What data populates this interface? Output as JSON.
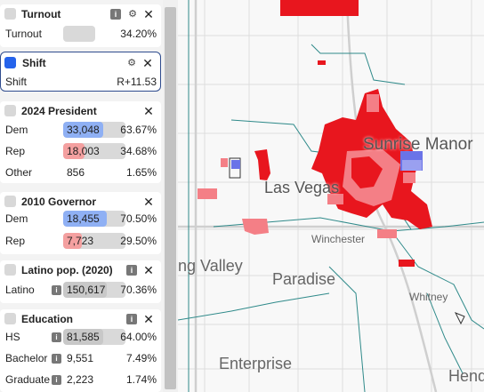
{
  "panel": {
    "turnout": {
      "title": "Turnout",
      "label": "Turnout",
      "value": "34.20%",
      "checked": false
    },
    "shift": {
      "title": "Shift",
      "label": "Shift",
      "value": "R+11.53",
      "checked": true
    },
    "president2024": {
      "title": "2024 President",
      "rows": [
        {
          "label": "Dem",
          "count": "33,048",
          "pct": "63.67%",
          "share": 63.67,
          "color": "#8fb0f4"
        },
        {
          "label": "Rep",
          "count": "18,003",
          "pct": "34.68%",
          "share": 34.68,
          "color": "#f4a0a0"
        },
        {
          "label": "Other",
          "count": "856",
          "pct": "1.65%",
          "share": 1.65,
          "color": "#d9d9d9"
        }
      ]
    },
    "governor2010": {
      "title": "2010 Governor",
      "rows": [
        {
          "label": "Dem",
          "count": "18,455",
          "pct": "70.50%",
          "share": 70.5,
          "color": "#8fb0f4"
        },
        {
          "label": "Rep",
          "count": "7,723",
          "pct": "29.50%",
          "share": 29.5,
          "color": "#f4a0a0"
        }
      ]
    },
    "latino": {
      "title": "Latino pop. (2020)",
      "rows": [
        {
          "label": "Latino",
          "count": "150,617",
          "pct": "70.36%",
          "share": 70.36,
          "color": "#c8c8c8"
        }
      ]
    },
    "education": {
      "title": "Education",
      "rows": [
        {
          "label": "HS",
          "count": "81,585",
          "pct": "64.00%",
          "share": 64.0,
          "color": "#c8c8c8"
        },
        {
          "label": "Bachelor",
          "count": "9,551",
          "pct": "7.49%",
          "share": 7.49,
          "color": "#c8c8c8"
        },
        {
          "label": "Graduate",
          "count": "2,223",
          "pct": "1.74%",
          "share": 1.74,
          "color": "#c8c8c8"
        }
      ]
    }
  },
  "map": {
    "labels": {
      "sunrise_manor": "Sunrise Manor",
      "las_vegas": "Las Vegas",
      "winchester": "Winchester",
      "spring_valley": "ng Valley",
      "paradise": "Paradise",
      "whitney": "Whitney",
      "enterprise": "Enterprise",
      "henderson": "Hend"
    },
    "colors": {
      "strong_rep": "#e8161e",
      "lean_rep": "#f47f86",
      "dem": "#6a73e8",
      "boundary": "#2f8a8a"
    }
  }
}
